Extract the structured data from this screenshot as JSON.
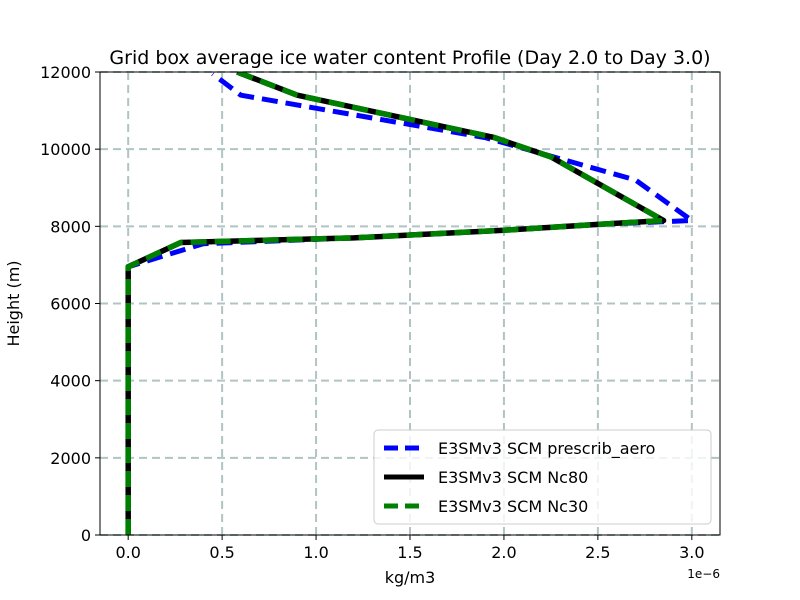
{
  "chart_data": {
    "type": "line",
    "title": "Grid box average ice water content Profile (Day 2.0 to Day 3.0)",
    "xlabel": "kg/m3",
    "ylabel": "Height (m)",
    "x_offset_label": "1e−6",
    "xlim": [
      -0.15,
      3.15
    ],
    "ylim": [
      0,
      12000
    ],
    "xticks": [
      0.0,
      0.5,
      1.0,
      1.5,
      2.0,
      2.5,
      3.0
    ],
    "xtick_labels": [
      "0.0",
      "0.5",
      "1.0",
      "1.5",
      "2.0",
      "2.5",
      "3.0"
    ],
    "yticks": [
      0,
      2000,
      4000,
      6000,
      8000,
      10000,
      12000
    ],
    "ytick_labels": [
      "0",
      "2000",
      "4000",
      "6000",
      "8000",
      "10000",
      "12000"
    ],
    "grid": true,
    "legend_position": "lower-right",
    "series": [
      {
        "name": "E3SMv3 SCM prescrib_aero",
        "color": "#0000ff",
        "style": "dashed",
        "x": [
          0.0,
          0.0,
          0.0,
          0.4,
          1.2,
          2.0,
          2.5,
          3.0,
          2.7,
          1.9,
          0.6,
          0.45
        ],
        "y": [
          0,
          3000,
          6950,
          7550,
          7700,
          7900,
          8050,
          8150,
          9200,
          10300,
          11400,
          11950
        ]
      },
      {
        "name": "E3SMv3 SCM Nc80",
        "color": "#000000",
        "style": "solid",
        "x": [
          0.0,
          0.0,
          0.0,
          0.28,
          1.2,
          2.0,
          2.5,
          2.85,
          2.25,
          1.95,
          0.9,
          0.58
        ],
        "y": [
          0,
          3000,
          6950,
          7580,
          7700,
          7900,
          8050,
          8150,
          9800,
          10300,
          11400,
          12000
        ]
      },
      {
        "name": "E3SMv3 SCM Nc30",
        "color": "#008000",
        "style": "dashed",
        "x": [
          0.0,
          0.0,
          0.0,
          0.28,
          1.2,
          2.0,
          2.5,
          2.85,
          2.25,
          1.95,
          0.9,
          0.58
        ],
        "y": [
          0,
          3000,
          6950,
          7580,
          7700,
          7900,
          8050,
          8150,
          9800,
          10300,
          11400,
          12000
        ]
      }
    ]
  }
}
